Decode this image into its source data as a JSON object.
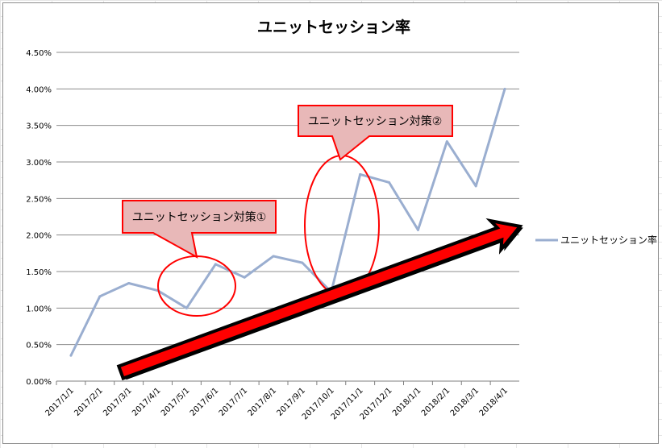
{
  "chart_data": {
    "type": "line",
    "title": "ユニットセッション率",
    "categories": [
      "2017/1/1",
      "2017/2/1",
      "2017/3/1",
      "2017/4/1",
      "2017/5/1",
      "2017/6/1",
      "2017/7/1",
      "2017/8/1",
      "2017/9/1",
      "2017/10/1",
      "2017/11/1",
      "2017/12/1",
      "2018/1/1",
      "2018/2/1",
      "2018/3/1",
      "2018/4/1"
    ],
    "series": [
      {
        "name": "ユニットセッション率",
        "color": "#9aaed0",
        "values": [
          0.0035,
          0.0116,
          0.0134,
          0.0124,
          0.01,
          0.016,
          0.0142,
          0.0171,
          0.0162,
          0.0122,
          0.0283,
          0.0272,
          0.0207,
          0.0328,
          0.0267,
          0.04
        ]
      }
    ],
    "ylim": [
      0,
      0.045
    ],
    "yticks": [
      "0.00%",
      "0.50%",
      "1.00%",
      "1.50%",
      "2.00%",
      "2.50%",
      "3.00%",
      "3.50%",
      "4.00%",
      "4.50%"
    ],
    "grid": true,
    "legend": "right",
    "annotations": [
      {
        "label": "ユニットセッション対策①",
        "target": "2017/5/1"
      },
      {
        "label": "ユニットセッション対策②",
        "target": "2017/10/1"
      }
    ],
    "colors": {
      "callout_fill": "#e8b8b8",
      "callout_border": "#ff0000",
      "arrow_fill": "#ff0000",
      "arrow_outline": "#000000"
    }
  }
}
